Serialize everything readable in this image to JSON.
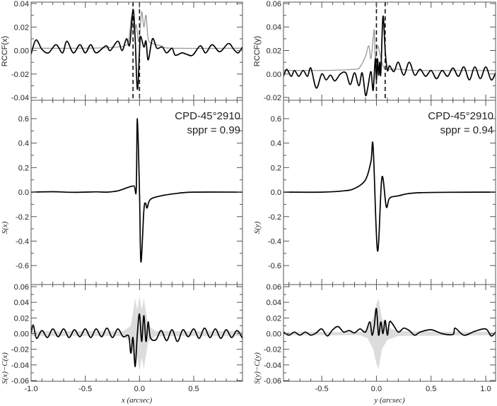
{
  "chart_data": [
    {
      "id": "lt",
      "type": "line",
      "ylabel": "RCCF(x)",
      "xlim": [
        -1.0,
        0.95
      ],
      "ylim": [
        -0.0423,
        0.0412
      ],
      "yticks": [
        -0.04,
        -0.02,
        0.0,
        0.02,
        0.04
      ],
      "ytick_labels": [
        "-0.04",
        "-0.02",
        "0.00",
        "0.02",
        "0.04"
      ],
      "vlines": [
        -0.06,
        0.0
      ],
      "series": [
        {
          "name": "gray",
          "color": "#999999",
          "x": [
            -1.0,
            -0.5,
            -0.2,
            -0.12,
            -0.1,
            -0.07,
            -0.05,
            -0.03,
            -0.01,
            0.0,
            0.02,
            0.04,
            0.06,
            0.08,
            0.12,
            0.2,
            0.3,
            0.95
          ],
          "y": [
            0.002,
            0.002,
            0.003,
            0.005,
            0.008,
            0.03,
            0.015,
            0.022,
            0.008,
            0.012,
            0.033,
            0.02,
            0.03,
            0.01,
            0.006,
            0.004,
            0.002,
            0.002
          ]
        },
        {
          "name": "black",
          "color": "#000000",
          "x": [
            -1.0,
            -0.955,
            -0.9,
            -0.84,
            -0.77,
            -0.71,
            -0.67,
            -0.61,
            -0.55,
            -0.5,
            -0.45,
            -0.4,
            -0.31,
            -0.27,
            -0.2,
            -0.16,
            -0.12,
            -0.09,
            -0.06,
            -0.04,
            -0.02,
            0.0,
            0.01,
            0.04,
            0.06,
            0.08,
            0.12,
            0.16,
            0.21,
            0.25,
            0.3,
            0.33,
            0.39,
            0.43,
            0.49,
            0.56,
            0.61,
            0.67,
            0.74,
            0.82,
            0.87,
            0.91,
            0.95
          ],
          "y": [
            -0.003,
            0.009,
            0.001,
            -0.002,
            0.005,
            -0.002,
            0.008,
            -0.002,
            0.005,
            -0.002,
            0.005,
            -0.002,
            0.004,
            0.0,
            0.008,
            0.0,
            0.01,
            0.005,
            0.035,
            0.01,
            -0.033,
            0.0,
            0.012,
            0.003,
            0.008,
            -0.008,
            0.01,
            0.002,
            0.003,
            -0.002,
            0.002,
            -0.004,
            -0.002,
            -0.003,
            -0.004,
            0.004,
            -0.002,
            0.005,
            -0.001,
            0.006,
            0.001,
            -0.002,
            0.003
          ]
        }
      ]
    },
    {
      "id": "rt",
      "type": "line",
      "ylabel": "RCCF(y)",
      "xlim": [
        -0.85,
        1.09
      ],
      "ylim": [
        -0.0224,
        0.0612
      ],
      "yticks": [
        -0.02,
        0.0,
        0.02,
        0.04,
        0.06
      ],
      "ytick_labels": [
        "-0.02",
        "0.00",
        "0.02",
        "0.04",
        "0.06"
      ],
      "vlines": [
        0.0,
        0.08
      ],
      "series": [
        {
          "name": "gray",
          "color": "#999999",
          "x": [
            -0.85,
            -0.5,
            -0.2,
            -0.15,
            -0.1,
            -0.07,
            -0.05,
            -0.03,
            -0.02,
            -0.01,
            0.01,
            0.03,
            0.05,
            0.07,
            0.1,
            0.2,
            0.4,
            1.09
          ],
          "y": [
            0.003,
            0.003,
            0.004,
            0.006,
            0.015,
            0.024,
            0.013,
            0.03,
            0.037,
            0.013,
            0.024,
            0.018,
            0.01,
            0.005,
            0.004,
            0.004,
            0.003,
            0.003
          ]
        },
        {
          "name": "black",
          "color": "#000000",
          "x": [
            -0.85,
            -0.82,
            -0.78,
            -0.75,
            -0.71,
            -0.67,
            -0.63,
            -0.6,
            -0.55,
            -0.5,
            -0.46,
            -0.42,
            -0.38,
            -0.33,
            -0.28,
            -0.24,
            -0.2,
            -0.16,
            -0.13,
            -0.1,
            -0.08,
            -0.05,
            -0.03,
            -0.01,
            0.0,
            0.01,
            0.02,
            0.03,
            0.04,
            0.06,
            0.08,
            0.1,
            0.12,
            0.16,
            0.2,
            0.25,
            0.3,
            0.35,
            0.4,
            0.45,
            0.5,
            0.55,
            0.6,
            0.65,
            0.7,
            0.75,
            0.8,
            0.85,
            0.9,
            0.95,
            1.0,
            1.05,
            1.09
          ],
          "y": [
            -0.002,
            0.004,
            -0.002,
            0.003,
            -0.002,
            0.003,
            -0.002,
            0.005,
            -0.012,
            0.0,
            -0.005,
            -0.001,
            -0.006,
            0.0,
            0.001,
            -0.009,
            0.001,
            -0.01,
            0.001,
            -0.018,
            -0.012,
            0.002,
            -0.014,
            0.013,
            -0.005,
            0.013,
            -0.001,
            0.01,
            0.0,
            0.049,
            0.02,
            0.003,
            0.007,
            0.002,
            0.01,
            -0.001,
            0.01,
            -0.001,
            0.004,
            -0.002,
            0.003,
            -0.004,
            0.003,
            -0.002,
            0.005,
            -0.002,
            0.006,
            -0.005,
            0.006,
            -0.004,
            0.006,
            -0.005,
            0.001
          ]
        }
      ]
    },
    {
      "id": "lm",
      "type": "line",
      "ylabel": "S(x)",
      "xlim": [
        -1.0,
        0.95
      ],
      "ylim": [
        -0.755,
        0.75
      ],
      "yticks": [
        -0.6,
        -0.4,
        -0.2,
        0.0,
        0.2,
        0.4,
        0.6
      ],
      "ytick_labels": [
        "-0.6",
        "-0.4",
        "-0.2",
        "0.0",
        "0.2",
        "0.4",
        "0.6"
      ],
      "annotation": [
        "CPD-45°2910",
        "sppr = 0.99"
      ],
      "series": [
        {
          "name": "black",
          "color": "#000000",
          "x": [
            -1.0,
            -0.8,
            -0.6,
            -0.4,
            -0.3,
            -0.2,
            -0.1,
            -0.05,
            -0.03,
            -0.02,
            0.0,
            0.013,
            0.04,
            0.055,
            0.07,
            0.1,
            0.2,
            0.35,
            0.5,
            0.95
          ],
          "y": [
            0.0,
            0.003,
            -0.002,
            0.002,
            0.0,
            0.01,
            0.04,
            0.05,
            0.02,
            0.6,
            0.0,
            -0.57,
            -0.15,
            -0.09,
            -0.13,
            -0.06,
            -0.03,
            -0.01,
            0.0,
            0.0
          ]
        }
      ]
    },
    {
      "id": "rm",
      "type": "line",
      "ylabel": "S(y)",
      "xlim": [
        -0.85,
        1.09
      ],
      "ylim": [
        -0.755,
        0.75
      ],
      "yticks": [
        -0.6,
        -0.4,
        -0.2,
        0.0,
        0.2,
        0.4,
        0.6
      ],
      "ytick_labels": [
        "-0.6",
        "-0.4",
        "-0.2",
        "0.0",
        "0.2",
        "0.4",
        "0.6"
      ],
      "annotation": [
        "CPD-45°2910",
        "sppr = 0.94"
      ],
      "series": [
        {
          "name": "black",
          "color": "#000000",
          "x": [
            -0.85,
            -0.5,
            -0.3,
            -0.2,
            -0.1,
            -0.05,
            -0.03,
            0.01,
            0.05,
            0.09,
            0.12,
            0.2,
            0.4,
            1.09
          ],
          "y": [
            0.0,
            0.0,
            0.01,
            0.03,
            0.1,
            0.25,
            0.37,
            -0.48,
            0.12,
            -0.12,
            -0.05,
            -0.03,
            -0.005,
            0.0
          ]
        }
      ]
    },
    {
      "id": "lb",
      "type": "line",
      "ylabel": "S(x)−C(x)",
      "xlabel": "x (arcsec)",
      "xlim": [
        -1.0,
        0.95
      ],
      "ylim": [
        -0.0609,
        0.0627
      ],
      "yticks": [
        -0.06,
        -0.04,
        -0.02,
        0.0,
        0.02,
        0.04,
        0.06
      ],
      "ytick_labels": [
        "-0.06",
        "-0.04",
        "-0.02",
        "0.00",
        "0.02",
        "0.04",
        "0.06"
      ],
      "xticks": [
        -1.0,
        -0.5,
        0.0,
        0.5
      ],
      "xtick_labels": [
        "-1.0",
        "-0.5",
        "0.0",
        "0.5"
      ],
      "envelope": {
        "x": [
          -1.0,
          -0.15,
          -0.08,
          -0.04,
          -0.02,
          0.0,
          0.02,
          0.04,
          0.08,
          0.15,
          0.95
        ],
        "y": [
          0.003,
          0.003,
          0.01,
          0.045,
          0.03,
          0.048,
          0.03,
          0.045,
          0.01,
          0.003,
          0.003
        ]
      },
      "series": [
        {
          "name": "black",
          "color": "#000000",
          "x": [
            -1.0,
            -0.98,
            -0.95,
            -0.9,
            -0.85,
            -0.8,
            -0.75,
            -0.7,
            -0.65,
            -0.6,
            -0.55,
            -0.5,
            -0.45,
            -0.4,
            -0.35,
            -0.3,
            -0.25,
            -0.2,
            -0.15,
            -0.1,
            -0.08,
            -0.06,
            -0.04,
            -0.02,
            0.0,
            0.02,
            0.04,
            0.06,
            0.08,
            0.1,
            0.15,
            0.2,
            0.25,
            0.3,
            0.35,
            0.4,
            0.45,
            0.5,
            0.55,
            0.6,
            0.65,
            0.7,
            0.75,
            0.8,
            0.85,
            0.9,
            0.95
          ],
          "y": [
            0.0,
            0.011,
            -0.006,
            0.004,
            -0.005,
            0.006,
            -0.004,
            0.006,
            -0.005,
            0.005,
            -0.004,
            0.006,
            -0.005,
            0.006,
            -0.004,
            0.007,
            -0.005,
            0.006,
            -0.004,
            -0.003,
            -0.025,
            -0.005,
            -0.042,
            0.0,
            0.025,
            -0.01,
            0.023,
            -0.01,
            0.015,
            -0.005,
            -0.008,
            0.004,
            -0.009,
            0.005,
            -0.01,
            0.005,
            -0.004,
            0.006,
            -0.006,
            0.007,
            -0.005,
            0.006,
            -0.006,
            0.005,
            -0.005,
            0.004,
            -0.006
          ]
        }
      ]
    },
    {
      "id": "rb",
      "type": "line",
      "ylabel": "S(y)−C(y)",
      "xlabel": "y (arcsec)",
      "xlim": [
        -0.85,
        1.09
      ],
      "ylim": [
        -0.0609,
        0.0627
      ],
      "yticks": [
        -0.06,
        -0.04,
        -0.02,
        0.0,
        0.02,
        0.04,
        0.06
      ],
      "ytick_labels": [
        "-0.06",
        "-0.04",
        "-0.02",
        "0.00",
        "0.02",
        "0.04",
        "0.06"
      ],
      "xticks": [
        -0.5,
        0.0,
        0.5,
        1.0
      ],
      "xtick_labels": [
        "-0.5",
        "0.0",
        "0.5",
        "1.0"
      ],
      "envelope": {
        "x": [
          -0.85,
          -0.15,
          -0.08,
          -0.03,
          0.0,
          0.02,
          0.05,
          0.1,
          0.2,
          1.09
        ],
        "y": [
          0.002,
          0.002,
          0.006,
          0.02,
          0.038,
          0.045,
          0.02,
          0.008,
          0.003,
          0.002
        ]
      },
      "series": [
        {
          "name": "black",
          "color": "#000000",
          "x": [
            -0.85,
            -0.8,
            -0.75,
            -0.7,
            -0.65,
            -0.6,
            -0.55,
            -0.5,
            -0.45,
            -0.4,
            -0.35,
            -0.3,
            -0.25,
            -0.2,
            -0.15,
            -0.1,
            -0.06,
            -0.04,
            -0.02,
            0.0,
            0.02,
            0.04,
            0.06,
            0.08,
            0.1,
            0.12,
            0.15,
            0.2,
            0.25,
            0.3,
            0.35,
            0.4,
            0.5,
            0.6,
            0.7,
            0.72,
            0.8,
            0.9,
            1.0,
            1.05,
            1.09
          ],
          "y": [
            0.002,
            -0.002,
            0.002,
            -0.002,
            0.002,
            -0.002,
            0.001,
            0.006,
            -0.003,
            0.005,
            0.009,
            0.002,
            0.004,
            0.001,
            0.006,
            0.002,
            0.015,
            -0.002,
            0.01,
            0.032,
            -0.002,
            0.015,
            0.0,
            0.017,
            -0.002,
            0.015,
            0.012,
            0.002,
            0.007,
            0.004,
            -0.002,
            0.002,
            0.005,
            0.0,
            -0.001,
            0.007,
            -0.002,
            0.003,
            0.006,
            -0.003,
            0.002
          ]
        }
      ]
    }
  ]
}
